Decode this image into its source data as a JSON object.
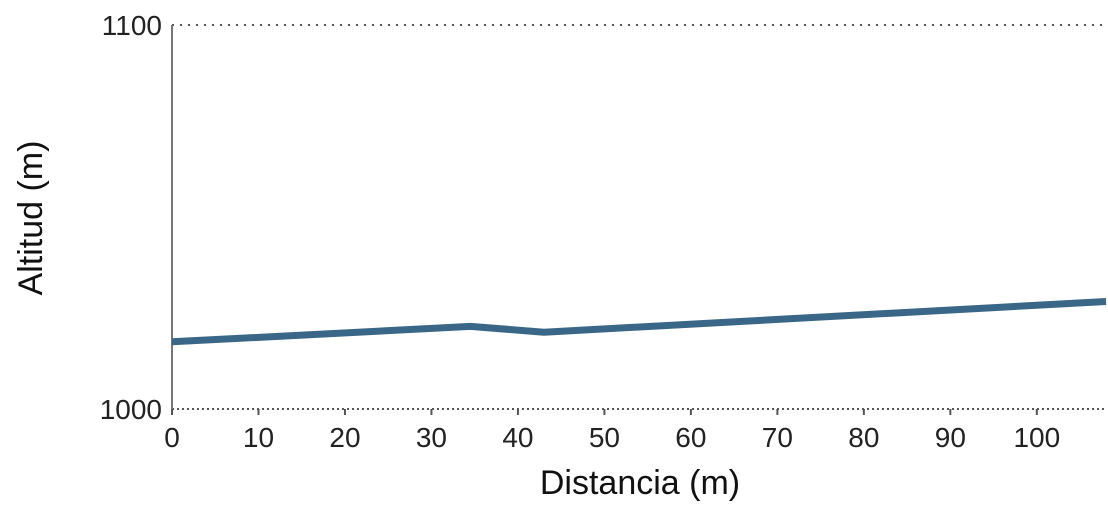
{
  "chart_data": {
    "type": "line",
    "title": "",
    "xlabel": "Distancia (m)",
    "ylabel": "Altitud (m)",
    "xlim": [
      0,
      108
    ],
    "ylim": [
      1000,
      1100
    ],
    "x_ticks": [
      0,
      10,
      20,
      30,
      40,
      50,
      60,
      70,
      80,
      90,
      100
    ],
    "x_tick_labels": [
      "0",
      "10",
      "20",
      "30",
      "40",
      "50",
      "60",
      "70",
      "80",
      "90",
      "100"
    ],
    "y_ticks": [
      1000,
      1100
    ],
    "y_tick_labels": [
      "1000",
      "1100"
    ],
    "grid": "dotted horizontal at y-ticks",
    "legend": "none",
    "series": [
      {
        "color": "#3a6787",
        "points": [
          {
            "x": 0,
            "y": 1017.5
          },
          {
            "x": 34.5,
            "y": 1021.5
          },
          {
            "x": 43,
            "y": 1020.0
          },
          {
            "x": 108,
            "y": 1028.0
          }
        ]
      }
    ]
  }
}
